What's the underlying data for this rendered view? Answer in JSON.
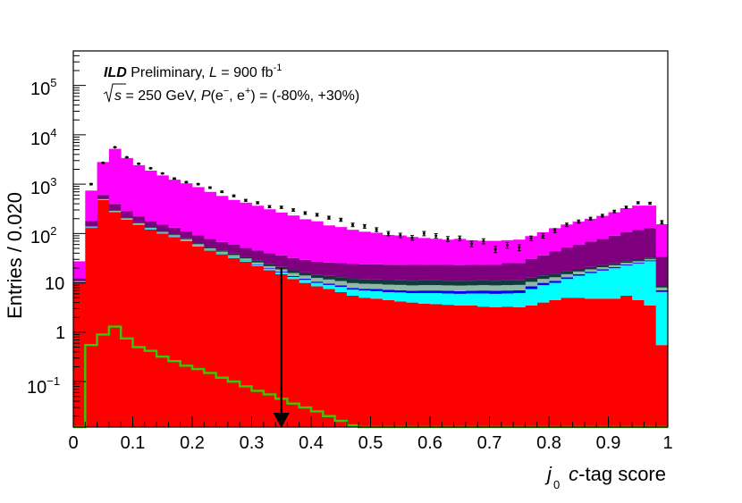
{
  "chart_data": {
    "type": "bar",
    "stacked": true,
    "xlabel": "j",
    "xlabel_sub": "0",
    "xlabel_rest": "c-tag score",
    "ylabel": "Entries / 0.020",
    "xlim": [
      0,
      1
    ],
    "ylim": [
      0.012,
      500000
    ],
    "log_y": true,
    "x_ticks": [
      "0",
      "0.1",
      "0.2",
      "0.3",
      "0.4",
      "0.5",
      "0.6",
      "0.7",
      "0.8",
      "0.9",
      "1"
    ],
    "y_tick_labels": {
      "e5": "10",
      "e5_exp": "5",
      "e4": "10",
      "e4_exp": "4",
      "e3": "10",
      "e3_exp": "3",
      "e2": "10",
      "e2_exp": "2",
      "e1": "10",
      "e0": "1",
      "em1": "10",
      "em1_exp": "−1"
    },
    "annotation": {
      "ild": "ILD",
      "prelim": " Preliminary, ",
      "lumi_L": "L",
      "lumi_eq": " = 900 fb",
      "lumi_exp": "-1",
      "sqrt_s": "s",
      "energy": " = 250 GeV, ",
      "pol_P": "P",
      "pol_open": "(e",
      "pol_em": "−",
      "pol_comma": ", e",
      "pol_ep": "+",
      "pol_vals": ") = (-80%, +30%)"
    },
    "cut_arrow_x": 0.35,
    "bin_width": 0.02,
    "bin_centers": [
      0.01,
      0.03,
      0.05,
      0.07,
      0.09,
      0.11,
      0.13,
      0.15,
      0.17,
      0.19,
      0.21,
      0.23,
      0.25,
      0.27,
      0.29,
      0.31,
      0.33,
      0.35,
      0.37,
      0.39,
      0.41,
      0.43,
      0.45,
      0.47,
      0.49,
      0.51,
      0.53,
      0.55,
      0.57,
      0.59,
      0.61,
      0.63,
      0.65,
      0.67,
      0.69,
      0.71,
      0.73,
      0.75,
      0.77,
      0.79,
      0.81,
      0.83,
      0.85,
      0.87,
      0.89,
      0.91,
      0.93,
      0.95,
      0.97,
      0.99
    ],
    "series": [
      {
        "color": "#ff0000",
        "values": [
          10,
          130,
          480,
          270,
          190,
          150,
          120,
          100,
          85,
          70,
          55,
          45,
          38,
          32,
          27,
          22,
          18,
          15,
          12,
          10,
          8.5,
          7.5,
          6.5,
          5.5,
          5,
          4.8,
          4.5,
          4.2,
          4,
          3.8,
          3.7,
          3.6,
          3.5,
          3.5,
          3.3,
          3.2,
          3.3,
          3.2,
          3.5,
          4,
          4.5,
          5,
          5,
          4.8,
          4.8,
          4.8,
          5.5,
          4.5,
          3.5,
          0.55
        ]
      },
      {
        "color": "#00ffff",
        "values": [
          0.1,
          2,
          5,
          5,
          4,
          3.5,
          3,
          2.5,
          2.2,
          2,
          1.8,
          1.6,
          1.5,
          1.4,
          1.3,
          1.2,
          1.2,
          1.2,
          1.2,
          1.5,
          1.5,
          1.6,
          1.8,
          1.8,
          2,
          2,
          2,
          2.2,
          2.2,
          2.4,
          2.5,
          2.5,
          2.5,
          2.6,
          2.8,
          2.8,
          2.8,
          3,
          4,
          5,
          5.5,
          7,
          9,
          11,
          13,
          15,
          17,
          20,
          24,
          6
        ]
      },
      {
        "color": "#0000ff",
        "values": [
          0.3,
          1,
          2,
          2,
          1.5,
          1.2,
          1,
          0.8,
          0.7,
          0.6,
          0.5,
          0.5,
          0.5,
          0.5,
          0.5,
          0.5,
          0.6,
          0.6,
          0.6,
          0.6,
          0.6,
          0.6,
          0.6,
          0.6,
          0.6,
          0.7,
          0.7,
          0.7,
          0.7,
          0.8,
          0.8,
          0.8,
          0.8,
          0.8,
          0.9,
          0.9,
          0.9,
          0.9,
          1,
          1,
          1,
          1,
          1,
          1,
          1,
          1,
          1,
          1,
          1,
          0.5
        ]
      },
      {
        "color": "#8fb8a8",
        "values": [
          0.4,
          5,
          10,
          10,
          8,
          7,
          6,
          5,
          4.5,
          4,
          3.5,
          3,
          2.8,
          2.6,
          2.4,
          2.2,
          2,
          2,
          2,
          2,
          2,
          2,
          2,
          2,
          2,
          2,
          2,
          2,
          2,
          2,
          2,
          2,
          2,
          2,
          2,
          2,
          2,
          2,
          2,
          2,
          2,
          2,
          2,
          2,
          2,
          2,
          2,
          2,
          2,
          1
        ]
      },
      {
        "color": "#103a3a",
        "values": [
          0.05,
          3,
          8,
          10,
          8,
          6,
          5,
          4.5,
          4,
          3.5,
          3.2,
          3,
          2.8,
          2.6,
          2.4,
          2.3,
          2.2,
          2.2,
          2.2,
          2.2,
          2.2,
          2.2,
          2.2,
          2.2,
          2.2,
          2.2,
          2.2,
          2.2,
          2.2,
          2.2,
          2.2,
          2.2,
          2.2,
          2.2,
          2.2,
          2.2,
          2.2,
          2.2,
          2.2,
          2.2,
          2.2,
          2.2,
          2.2,
          2.2,
          2.2,
          2.2,
          2.2,
          2.2,
          2.2,
          1
        ]
      },
      {
        "color": "#7f007f",
        "values": [
          1.5,
          40,
          100,
          100,
          70,
          55,
          45,
          40,
          35,
          30,
          28,
          25,
          22,
          20,
          18,
          17,
          16,
          15,
          14,
          13,
          12,
          12,
          12,
          12,
          12,
          12,
          12,
          12,
          12,
          12,
          12,
          12,
          12,
          12,
          12,
          12,
          14,
          14,
          18,
          22,
          28,
          35,
          40,
          48,
          55,
          65,
          78,
          88,
          95,
          25
        ]
      },
      {
        "color": "#ff00ff",
        "values": [
          15,
          560,
          2200,
          4800,
          3100,
          2200,
          1700,
          1350,
          1100,
          930,
          780,
          620,
          510,
          420,
          370,
          320,
          270,
          230,
          200,
          165,
          150,
          120,
          110,
          95,
          85,
          80,
          70,
          68,
          62,
          58,
          55,
          52,
          55,
          50,
          48,
          48,
          48,
          50,
          58,
          70,
          85,
          100,
          115,
          130,
          150,
          180,
          220,
          250,
          240,
          120
        ]
      }
    ],
    "data_points": {
      "values": [
        null,
        1000,
        2700,
        5600,
        3500,
        2600,
        2100,
        1650,
        1300,
        1100,
        1000,
        850,
        700,
        580,
        470,
        420,
        350,
        340,
        300,
        260,
        240,
        210,
        190,
        150,
        140,
        120,
        100,
        92,
        82,
        100,
        90,
        78,
        80,
        62,
        70,
        48,
        58,
        52,
        80,
        90,
        115,
        150,
        175,
        200,
        230,
        280,
        340,
        420,
        410,
        170
      ]
    },
    "signal": {
      "color": "#33cc00",
      "values": [
        0.012,
        0.55,
        0.9,
        1.3,
        0.75,
        0.5,
        0.42,
        0.32,
        0.26,
        0.21,
        0.18,
        0.15,
        0.12,
        0.1,
        0.08,
        0.065,
        0.055,
        0.045,
        0.036,
        0.03,
        0.025,
        0.02,
        0.016,
        0.013,
        0.012,
        0.012,
        0.012,
        0.012,
        0.012,
        0.012,
        0.012,
        0.012,
        0.012,
        0.012,
        0.012,
        0.012,
        0.012,
        0.012,
        0.012,
        0.012,
        0.012,
        0.012,
        0.012,
        0.012,
        0.012,
        0.012,
        0.012,
        0.012,
        0.012,
        0.012
      ]
    }
  }
}
